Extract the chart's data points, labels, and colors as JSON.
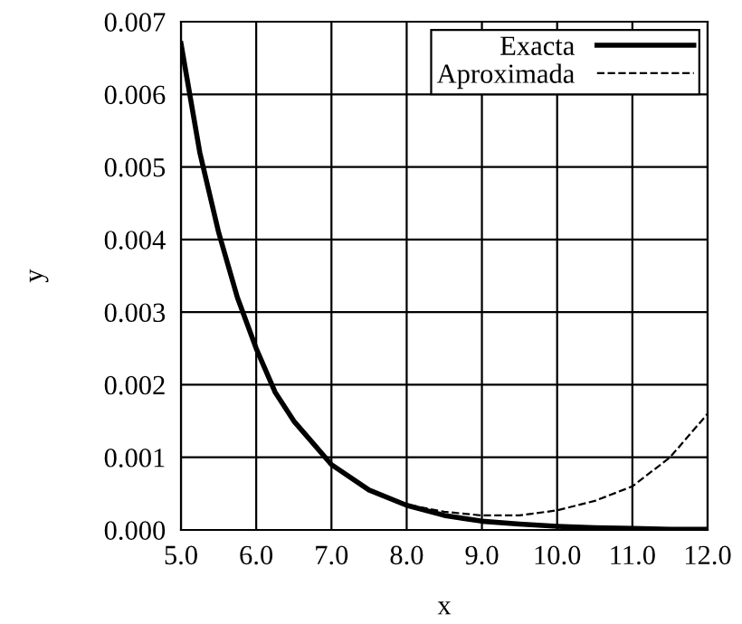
{
  "chart_data": {
    "type": "line",
    "xlabel": "x",
    "ylabel": "y",
    "xlim": [
      5.0,
      12.0
    ],
    "ylim": [
      0.0,
      0.007
    ],
    "xticks": [
      {
        "value": 5,
        "label": "5.0"
      },
      {
        "value": 6,
        "label": "6.0"
      },
      {
        "value": 7,
        "label": "7.0"
      },
      {
        "value": 8,
        "label": "8.0"
      },
      {
        "value": 9,
        "label": "9.0"
      },
      {
        "value": 10,
        "label": "10.0"
      },
      {
        "value": 11,
        "label": "11.0"
      },
      {
        "value": 12,
        "label": "12.0"
      }
    ],
    "yticks": [
      {
        "value": 0,
        "label": "0.000"
      },
      {
        "value": 0.001,
        "label": "0.001"
      },
      {
        "value": 0.002,
        "label": "0.002"
      },
      {
        "value": 0.003,
        "label": "0.003"
      },
      {
        "value": 0.004,
        "label": "0.004"
      },
      {
        "value": 0.005,
        "label": "0.005"
      },
      {
        "value": 0.006,
        "label": "0.006"
      },
      {
        "value": 0.007,
        "label": "0.007"
      }
    ],
    "grid": true,
    "legend": "top right",
    "series": [
      {
        "name": "Exacta",
        "color": "#000000",
        "line_style": "solid",
        "x": [
          5.0,
          5.25,
          5.5,
          5.75,
          6.0,
          6.25,
          6.5,
          6.75,
          7.0,
          7.5,
          8.0,
          8.5,
          9.0,
          9.5,
          10.0,
          10.5,
          11.0,
          11.5,
          12.0
        ],
        "values": [
          0.0067,
          0.0052,
          0.0041,
          0.0032,
          0.0025,
          0.0019,
          0.0015,
          0.0012,
          0.0009,
          0.00055,
          0.00034,
          0.0002,
          0.00012,
          8e-05,
          5e-05,
          3e-05,
          2e-05,
          1e-05,
          1e-05
        ]
      },
      {
        "name": "Aproximada",
        "color": "#000000",
        "line_style": "dashed",
        "x": [
          5.0,
          5.25,
          5.5,
          5.75,
          6.0,
          6.25,
          6.5,
          6.75,
          7.0,
          7.5,
          8.0,
          8.5,
          9.0,
          9.5,
          10.0,
          10.5,
          11.0,
          11.5,
          12.0
        ],
        "values": [
          0.0067,
          0.0052,
          0.0041,
          0.0032,
          0.0025,
          0.0019,
          0.0015,
          0.0012,
          0.0009,
          0.00055,
          0.00035,
          0.00025,
          0.0002,
          0.0002,
          0.00027,
          0.0004,
          0.0006,
          0.001,
          0.0016
        ]
      }
    ]
  }
}
